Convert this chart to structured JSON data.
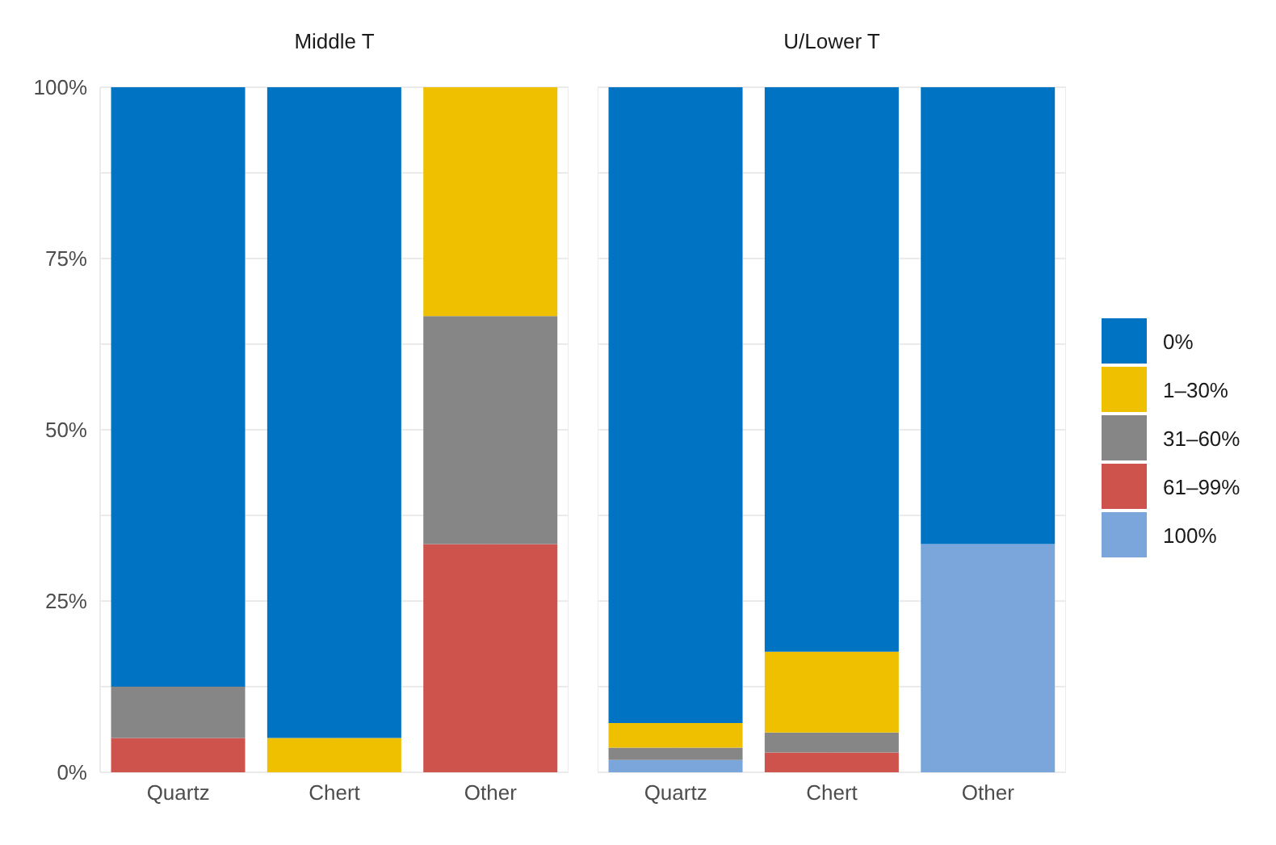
{
  "chart_data": [
    {
      "type": "bar",
      "title": "Middle T",
      "categories": [
        "Quartz",
        "Chert",
        "Other"
      ],
      "stacked": true,
      "ylim": [
        0,
        100
      ],
      "yticks": [
        {
          "value": 0,
          "label": "0%"
        },
        {
          "value": 12.5,
          "label": null
        },
        {
          "value": 25,
          "label": "25%"
        },
        {
          "value": 37.5,
          "label": null
        },
        {
          "value": 50,
          "label": "50%"
        },
        {
          "value": 62.5,
          "label": null
        },
        {
          "value": 75,
          "label": "75%"
        },
        {
          "value": 87.5,
          "label": null
        },
        {
          "value": 100,
          "label": "100%"
        }
      ],
      "grid": true,
      "legend": false,
      "series": [
        {
          "color": "#cd534c",
          "values": [
            5,
            null,
            33.3
          ]
        },
        {
          "color": "#868686",
          "values": [
            7.5,
            null,
            33.3
          ]
        },
        {
          "color": "#efc000",
          "values": [
            null,
            5,
            33.4
          ]
        },
        {
          "color": "#0073c2",
          "values": [
            87.5,
            95,
            null
          ]
        }
      ]
    },
    {
      "type": "bar",
      "title": "U/Lower T",
      "categories": [
        "Quartz",
        "Chert",
        "Other"
      ],
      "stacked": true,
      "ylim": [
        0,
        100
      ],
      "tick_labels": "x",
      "grid": true,
      "legend": "right",
      "yticks": [
        {
          "value": 0,
          "label": null
        },
        {
          "value": 12.5,
          "label": null
        },
        {
          "value": 25,
          "label": null
        },
        {
          "value": 37.5,
          "label": null
        },
        {
          "value": 50,
          "label": null
        },
        {
          "value": 62.5,
          "label": null
        },
        {
          "value": 75,
          "label": null
        },
        {
          "value": 87.5,
          "label": null
        },
        {
          "value": 100,
          "label": null
        }
      ],
      "series": [
        {
          "name": "100%",
          "color": "#7aa6dc",
          "values": [
            1.8,
            null,
            33.3
          ]
        },
        {
          "name": "61–99%",
          "color": "#cd534c",
          "values": [
            null,
            2.9,
            null
          ]
        },
        {
          "name": "31–60%",
          "color": "#868686",
          "values": [
            1.8,
            2.9,
            null
          ]
        },
        {
          "name": "1–30%",
          "color": "#efc000",
          "values": [
            3.6,
            11.8,
            null
          ]
        },
        {
          "name": "0%",
          "color": "#0073c2",
          "values": [
            92.8,
            82.4,
            66.7
          ]
        }
      ]
    }
  ]
}
